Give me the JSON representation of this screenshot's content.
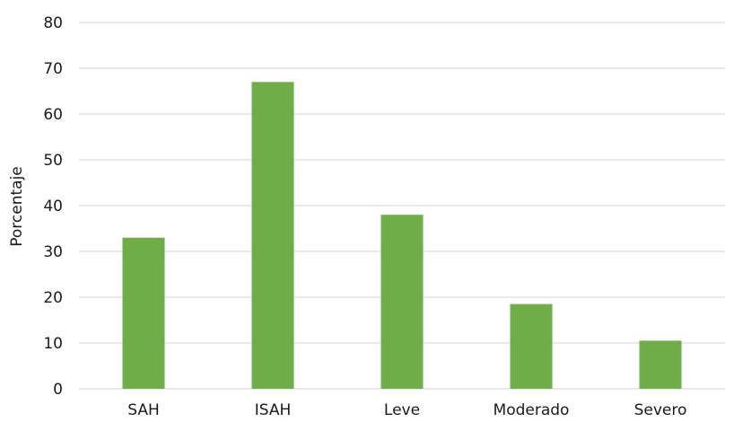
{
  "chart_data": {
    "type": "bar",
    "categories": [
      "SAH",
      "ISAH",
      "Leve",
      "Moderado",
      "Severo"
    ],
    "values": [
      33,
      67,
      38,
      18.5,
      10.5
    ],
    "ylabel": "Porcentaje",
    "xlabel": "",
    "ylim": [
      0,
      80
    ],
    "yticks": [
      0,
      10,
      20,
      30,
      40,
      50,
      60,
      70,
      80
    ],
    "grid": true,
    "legend": "none",
    "bar_color": "#70ad47"
  }
}
